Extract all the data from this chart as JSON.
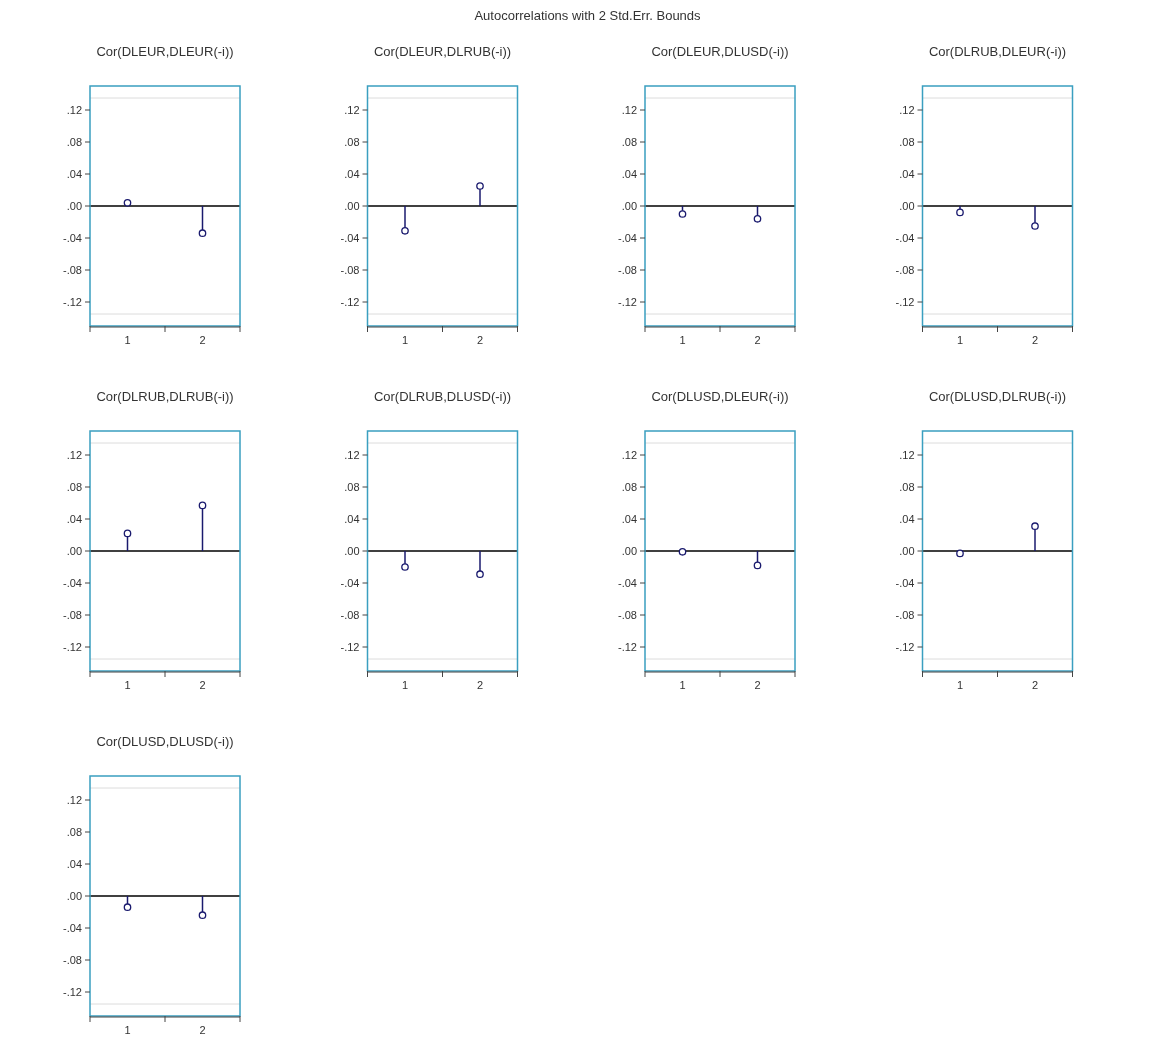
{
  "chart_data": [
    {
      "type": "lollipop",
      "title": "Cor(DLEUR,DLEUR(-i))",
      "annotations": [
        "Autocorrelations with 2 Std.Err. Bounds"
      ],
      "categories": [
        "1",
        "2"
      ],
      "values": [
        0.004,
        -0.034
      ],
      "color": "#1a1a6e",
      "marker": "circle",
      "ylim": [
        -0.15,
        0.15
      ],
      "yticks": [
        {
          "value": -0.12,
          "label": "-.12"
        },
        {
          "value": -0.08,
          "label": "-.08"
        },
        {
          "value": -0.04,
          "label": "-.04"
        },
        {
          "value": 0,
          "label": ".00"
        },
        {
          "value": 0.04,
          "label": ".04"
        },
        {
          "value": 0.08,
          "label": ".08"
        },
        {
          "value": 0.12,
          "label": ".12"
        }
      ],
      "ref_lines": [
        {
          "axis": "y",
          "value": 0.135,
          "color": "#dcdcdc"
        },
        {
          "axis": "y",
          "value": -0.135,
          "color": "#dcdcdc"
        }
      ]
    },
    {
      "type": "lollipop",
      "title": "Cor(DLEUR,DLRUB(-i))",
      "categories": [
        "1",
        "2"
      ],
      "values": [
        -0.031,
        0.025
      ],
      "color": "#1a1a6e",
      "marker": "circle",
      "ylim": [
        -0.15,
        0.15
      ],
      "yticks": [
        {
          "value": -0.12,
          "label": "-.12"
        },
        {
          "value": -0.08,
          "label": "-.08"
        },
        {
          "value": -0.04,
          "label": "-.04"
        },
        {
          "value": 0,
          "label": ".00"
        },
        {
          "value": 0.04,
          "label": ".04"
        },
        {
          "value": 0.08,
          "label": ".08"
        },
        {
          "value": 0.12,
          "label": ".12"
        }
      ],
      "ref_lines": [
        {
          "axis": "y",
          "value": 0.135,
          "color": "#dcdcdc"
        },
        {
          "axis": "y",
          "value": -0.135,
          "color": "#dcdcdc"
        }
      ]
    },
    {
      "type": "lollipop",
      "title": "Cor(DLEUR,DLUSD(-i))",
      "categories": [
        "1",
        "2"
      ],
      "values": [
        -0.01,
        -0.016
      ],
      "color": "#1a1a6e",
      "marker": "circle",
      "ylim": [
        -0.15,
        0.15
      ],
      "yticks": [
        {
          "value": -0.12,
          "label": "-.12"
        },
        {
          "value": -0.08,
          "label": "-.08"
        },
        {
          "value": -0.04,
          "label": "-.04"
        },
        {
          "value": 0,
          "label": ".00"
        },
        {
          "value": 0.04,
          "label": ".04"
        },
        {
          "value": 0.08,
          "label": ".08"
        },
        {
          "value": 0.12,
          "label": ".12"
        }
      ],
      "ref_lines": [
        {
          "axis": "y",
          "value": 0.135,
          "color": "#dcdcdc"
        },
        {
          "axis": "y",
          "value": -0.135,
          "color": "#dcdcdc"
        }
      ]
    },
    {
      "type": "lollipop",
      "title": "Cor(DLRUB,DLEUR(-i))",
      "categories": [
        "1",
        "2"
      ],
      "values": [
        -0.008,
        -0.025
      ],
      "color": "#1a1a6e",
      "marker": "circle",
      "ylim": [
        -0.15,
        0.15
      ],
      "yticks": [
        {
          "value": -0.12,
          "label": "-.12"
        },
        {
          "value": -0.08,
          "label": "-.08"
        },
        {
          "value": -0.04,
          "label": "-.04"
        },
        {
          "value": 0,
          "label": ".00"
        },
        {
          "value": 0.04,
          "label": ".04"
        },
        {
          "value": 0.08,
          "label": ".08"
        },
        {
          "value": 0.12,
          "label": ".12"
        }
      ],
      "ref_lines": [
        {
          "axis": "y",
          "value": 0.135,
          "color": "#dcdcdc"
        },
        {
          "axis": "y",
          "value": -0.135,
          "color": "#dcdcdc"
        }
      ]
    },
    {
      "type": "lollipop",
      "title": "Cor(DLRUB,DLRUB(-i))",
      "categories": [
        "1",
        "2"
      ],
      "values": [
        0.022,
        0.057
      ],
      "color": "#1a1a6e",
      "marker": "circle",
      "ylim": [
        -0.15,
        0.15
      ],
      "yticks": [
        {
          "value": -0.12,
          "label": "-.12"
        },
        {
          "value": -0.08,
          "label": "-.08"
        },
        {
          "value": -0.04,
          "label": "-.04"
        },
        {
          "value": 0,
          "label": ".00"
        },
        {
          "value": 0.04,
          "label": ".04"
        },
        {
          "value": 0.08,
          "label": ".08"
        },
        {
          "value": 0.12,
          "label": ".12"
        }
      ],
      "ref_lines": [
        {
          "axis": "y",
          "value": 0.135,
          "color": "#dcdcdc"
        },
        {
          "axis": "y",
          "value": -0.135,
          "color": "#dcdcdc"
        }
      ]
    },
    {
      "type": "lollipop",
      "title": "Cor(DLRUB,DLUSD(-i))",
      "categories": [
        "1",
        "2"
      ],
      "values": [
        -0.02,
        -0.029
      ],
      "color": "#1a1a6e",
      "marker": "circle",
      "ylim": [
        -0.15,
        0.15
      ],
      "yticks": [
        {
          "value": -0.12,
          "label": "-.12"
        },
        {
          "value": -0.08,
          "label": "-.08"
        },
        {
          "value": -0.04,
          "label": "-.04"
        },
        {
          "value": 0,
          "label": ".00"
        },
        {
          "value": 0.04,
          "label": ".04"
        },
        {
          "value": 0.08,
          "label": ".08"
        },
        {
          "value": 0.12,
          "label": ".12"
        }
      ],
      "ref_lines": [
        {
          "axis": "y",
          "value": 0.135,
          "color": "#dcdcdc"
        },
        {
          "axis": "y",
          "value": -0.135,
          "color": "#dcdcdc"
        }
      ]
    },
    {
      "type": "lollipop",
      "title": "Cor(DLUSD,DLEUR(-i))",
      "categories": [
        "1",
        "2"
      ],
      "values": [
        -0.001,
        -0.018
      ],
      "color": "#1a1a6e",
      "marker": "circle",
      "ylim": [
        -0.15,
        0.15
      ],
      "yticks": [
        {
          "value": -0.12,
          "label": "-.12"
        },
        {
          "value": -0.08,
          "label": "-.08"
        },
        {
          "value": -0.04,
          "label": "-.04"
        },
        {
          "value": 0,
          "label": ".00"
        },
        {
          "value": 0.04,
          "label": ".04"
        },
        {
          "value": 0.08,
          "label": ".08"
        },
        {
          "value": 0.12,
          "label": ".12"
        }
      ],
      "ref_lines": [
        {
          "axis": "y",
          "value": 0.135,
          "color": "#dcdcdc"
        },
        {
          "axis": "y",
          "value": -0.135,
          "color": "#dcdcdc"
        }
      ]
    },
    {
      "type": "lollipop",
      "title": "Cor(DLUSD,DLRUB(-i))",
      "categories": [
        "1",
        "2"
      ],
      "values": [
        -0.003,
        0.031
      ],
      "color": "#1a1a6e",
      "marker": "circle",
      "ylim": [
        -0.15,
        0.15
      ],
      "yticks": [
        {
          "value": -0.12,
          "label": "-.12"
        },
        {
          "value": -0.08,
          "label": "-.08"
        },
        {
          "value": -0.04,
          "label": "-.04"
        },
        {
          "value": 0,
          "label": ".00"
        },
        {
          "value": 0.04,
          "label": ".04"
        },
        {
          "value": 0.08,
          "label": ".08"
        },
        {
          "value": 0.12,
          "label": ".12"
        }
      ],
      "ref_lines": [
        {
          "axis": "y",
          "value": 0.135,
          "color": "#dcdcdc"
        },
        {
          "axis": "y",
          "value": -0.135,
          "color": "#dcdcdc"
        }
      ]
    },
    {
      "type": "lollipop",
      "title": "Cor(DLUSD,DLUSD(-i))",
      "categories": [
        "1",
        "2"
      ],
      "values": [
        -0.014,
        -0.024
      ],
      "color": "#1a1a6e",
      "marker": "circle",
      "ylim": [
        -0.15,
        0.15
      ],
      "yticks": [
        {
          "value": -0.12,
          "label": "-.12"
        },
        {
          "value": -0.08,
          "label": "-.08"
        },
        {
          "value": -0.04,
          "label": "-.04"
        },
        {
          "value": 0,
          "label": ".00"
        },
        {
          "value": 0.04,
          "label": ".04"
        },
        {
          "value": 0.08,
          "label": ".08"
        },
        {
          "value": 0.12,
          "label": ".12"
        }
      ],
      "ref_lines": [
        {
          "axis": "y",
          "value": 0.135,
          "color": "#dcdcdc"
        },
        {
          "axis": "y",
          "value": -0.135,
          "color": "#dcdcdc"
        }
      ]
    }
  ]
}
